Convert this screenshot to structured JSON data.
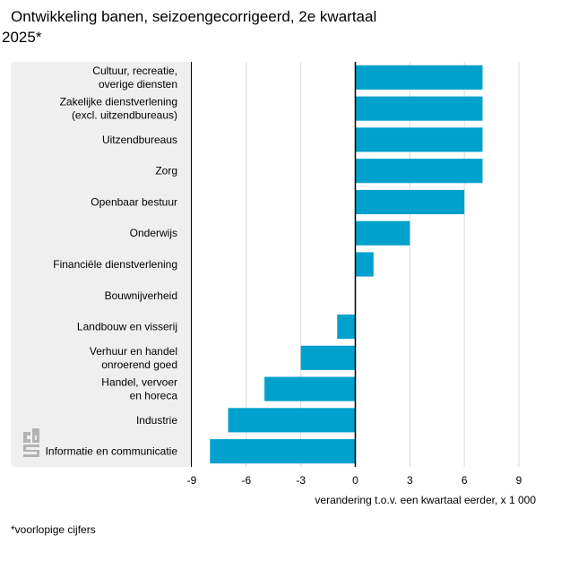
{
  "title": {
    "line1": "Ontwikkeling banen, seizoengecorrigeerd, 2e kwartaal",
    "line2": "2025*"
  },
  "footnote": "*voorlopige cijfers",
  "logo_text": "cbs",
  "colors": {
    "bar": "#00a1cd",
    "label_panel": "#efefef",
    "grid": "#d9d9d9",
    "zero_line": "#000000"
  },
  "chart_data": {
    "type": "bar",
    "orientation": "horizontal",
    "categories": [
      [
        "Cultuur, recreatie,",
        "overige diensten"
      ],
      [
        "Zakelijke dienstverlening",
        "(excl. uitzendbureaus)"
      ],
      [
        "Uitzendbureaus"
      ],
      [
        "Zorg"
      ],
      [
        "Openbaar bestuur"
      ],
      [
        "Onderwijs"
      ],
      [
        "Financiële dienstverlening"
      ],
      [
        "Bouwnijverheid"
      ],
      [
        "Landbouw en visserij"
      ],
      [
        "Verhuur en handel",
        "onroerend goed"
      ],
      [
        "Handel, vervoer",
        "en horeca"
      ],
      [
        "Industrie"
      ],
      [
        "Informatie en communicatie"
      ]
    ],
    "values": [
      7,
      7,
      7,
      7,
      6,
      3,
      1,
      0,
      -1,
      -3,
      -5,
      -7,
      -8
    ],
    "xlabel": "verandering t.o.v. een kwartaal eerder, x 1 000",
    "xlim": [
      -9,
      9
    ],
    "xticks": [
      -9,
      -6,
      -3,
      0,
      3,
      6,
      9
    ],
    "grid": true
  }
}
